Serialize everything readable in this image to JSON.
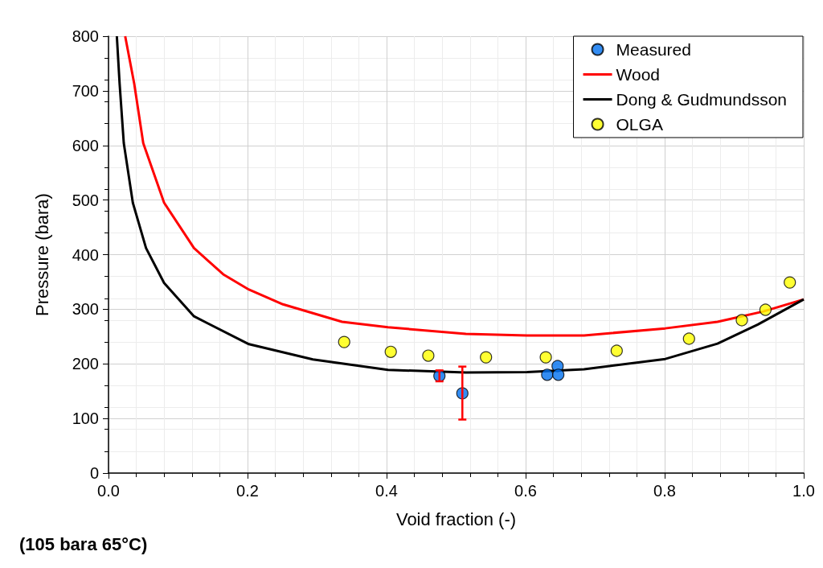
{
  "chart_data": {
    "type": "scatter",
    "xlabel": "Void fraction (-)",
    "ylabel": "Pressure (bara)",
    "xlim": [
      0,
      1
    ],
    "ylim": [
      0,
      800
    ],
    "xticks": [
      {
        "value": 0,
        "label": "0.0"
      },
      {
        "value": 0.2,
        "label": "0.2"
      },
      {
        "value": 0.4,
        "label": "0.4"
      },
      {
        "value": 0.6,
        "label": "0.6"
      },
      {
        "value": 0.8,
        "label": "0.8"
      },
      {
        "value": 1,
        "label": "1.0"
      }
    ],
    "yticks": [
      0,
      100,
      200,
      300,
      400,
      500,
      600,
      700,
      800
    ],
    "grid": true,
    "legend": "top right",
    "annotations": [
      "(105 bara 65°C)"
    ],
    "series": [
      {
        "name": "Measured",
        "marker": "circle",
        "color": "#0070f0",
        "x": [
          0.476,
          0.509,
          0.631,
          0.646,
          0.647
        ],
        "values": [
          178,
          146,
          180,
          196,
          180
        ],
        "errors": [
          10,
          [
            98,
            195
          ],
          null,
          null,
          null
        ]
      },
      {
        "name": "Wood",
        "type": "line",
        "marker": "none",
        "color": "#ff0000",
        "x": [
          0.024,
          0.037,
          0.05,
          0.08,
          0.123,
          0.165,
          0.202,
          0.251,
          0.336,
          0.402,
          0.514,
          0.602,
          0.684,
          0.801,
          0.876,
          0.942,
          1.0
        ],
        "values": [
          800,
          713,
          604,
          495,
          412,
          364,
          336,
          309,
          277,
          267,
          255,
          252,
          252,
          265,
          277,
          296,
          318
        ]
      },
      {
        "name": "Dong & Gudmundsson",
        "type": "line",
        "marker": "none",
        "color": "#000000",
        "x": [
          0.012,
          0.016,
          0.022,
          0.035,
          0.054,
          0.08,
          0.123,
          0.202,
          0.294,
          0.402,
          0.514,
          0.602,
          0.684,
          0.801,
          0.876,
          0.934,
          1.0
        ],
        "values": [
          800,
          713,
          604,
          495,
          412,
          348,
          287,
          236,
          208,
          189,
          184,
          185,
          190,
          209,
          237,
          272,
          318
        ]
      },
      {
        "name": "OLGA",
        "marker": "circle",
        "color": "#ffff00",
        "x": [
          0.339,
          0.406,
          0.46,
          0.543,
          0.629,
          0.731,
          0.835,
          0.911,
          0.945,
          0.98
        ],
        "values": [
          240,
          222,
          215,
          212,
          212,
          224,
          246,
          280,
          299,
          349
        ]
      }
    ]
  }
}
